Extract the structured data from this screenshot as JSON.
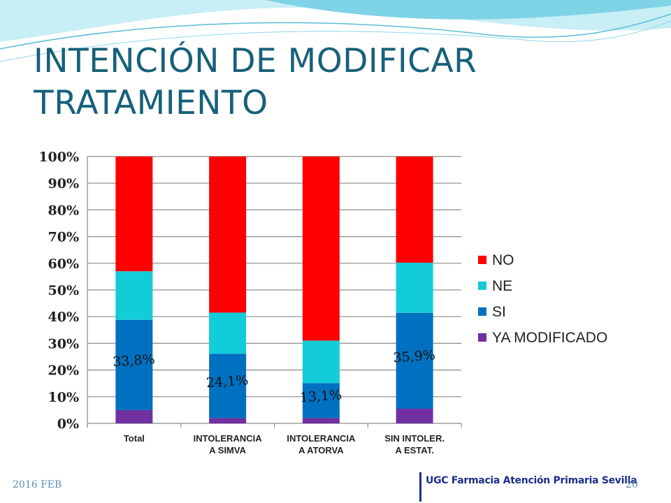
{
  "title": "INTENCIÓN DE MODIFICAR TRATAMIENTO",
  "footer": {
    "date": "2016 FEB",
    "organization": "UGC Farmacia Atención Primaria Sevilla",
    "page_number": "20"
  },
  "colors": {
    "title": "#17607a",
    "wave_light": "#c8eef6",
    "wave_mid": "#7fd3e6",
    "footer_text": "#5a8fb0",
    "footer_org": "#1b2f8a"
  },
  "chart_data": {
    "type": "bar",
    "stacked": true,
    "normalized": true,
    "categories": [
      "Total",
      "INTOLERANCIA A SIMVA",
      "INTOLERANCIA A ATORVA",
      "SIN INTOLER. A ESTAT."
    ],
    "series": [
      {
        "name": "YA MODIFICADO",
        "color": "#7030a0",
        "values": [
          5.0,
          2.0,
          2.0,
          5.5
        ]
      },
      {
        "name": "SI",
        "color": "#0070c0",
        "values": [
          33.8,
          24.1,
          13.1,
          35.9
        ]
      },
      {
        "name": "NE",
        "color": "#12ccd7",
        "values": [
          18.2,
          15.4,
          15.9,
          18.8
        ]
      },
      {
        "name": "NO",
        "color": "#ff0000",
        "values": [
          43.0,
          58.5,
          69.0,
          39.8
        ]
      }
    ],
    "data_labels": [
      "33,8%",
      "24,1%",
      "13,1%",
      "35,9%"
    ],
    "legend_order": [
      "NO",
      "NE",
      "SI",
      "YA MODIFICADO"
    ],
    "y_ticks": [
      "0%",
      "10%",
      "20%",
      "30%",
      "40%",
      "50%",
      "60%",
      "70%",
      "80%",
      "90%",
      "100%"
    ],
    "ylim": [
      0,
      100
    ],
    "grid": true,
    "legend_position": "right"
  }
}
